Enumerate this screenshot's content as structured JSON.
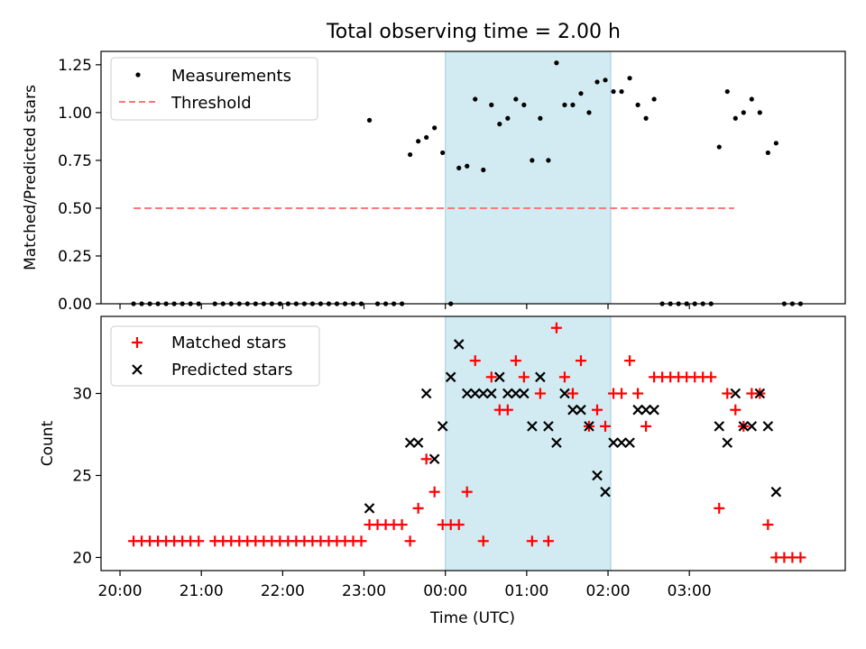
{
  "title": "Total observing time = 2.00 h",
  "chart_data": [
    {
      "type": "scatter",
      "ylabel": "Matched/Predicted stars",
      "ylim": [
        0,
        1.32
      ],
      "yticks": [
        "0.00",
        "0.25",
        "0.50",
        "0.75",
        "1.00",
        "1.25"
      ],
      "shaded_interval": [
        "00:00",
        "02:02"
      ],
      "legend": {
        "placement": "top-left",
        "entries": [
          "Measurements",
          "Threshold"
        ]
      },
      "threshold": {
        "name": "Threshold",
        "x": [
          "20:10",
          "03:33"
        ],
        "y": 0.5,
        "color": "#ff7777",
        "style": "dashed"
      },
      "series": [
        {
          "name": "Measurements",
          "color": "#000000",
          "marker": "dot",
          "points": [
            [
              "20:10",
              0
            ],
            [
              "20:16",
              0
            ],
            [
              "20:22",
              0
            ],
            [
              "20:28",
              0
            ],
            [
              "20:34",
              0
            ],
            [
              "20:40",
              0
            ],
            [
              "20:46",
              0
            ],
            [
              "20:52",
              0
            ],
            [
              "20:58",
              0
            ],
            [
              "21:10",
              0
            ],
            [
              "21:16",
              0
            ],
            [
              "21:22",
              0
            ],
            [
              "21:28",
              0
            ],
            [
              "21:34",
              0
            ],
            [
              "21:40",
              0
            ],
            [
              "21:46",
              0
            ],
            [
              "21:52",
              0
            ],
            [
              "21:58",
              0
            ],
            [
              "22:04",
              0
            ],
            [
              "22:10",
              0
            ],
            [
              "22:16",
              0
            ],
            [
              "22:22",
              0
            ],
            [
              "22:28",
              0
            ],
            [
              "22:34",
              0
            ],
            [
              "22:40",
              0
            ],
            [
              "22:46",
              0
            ],
            [
              "22:52",
              0
            ],
            [
              "22:58",
              0
            ],
            [
              "23:04",
              0.96
            ],
            [
              "23:10",
              0
            ],
            [
              "23:16",
              0
            ],
            [
              "23:22",
              0
            ],
            [
              "23:28",
              0
            ],
            [
              "23:34",
              0.78
            ],
            [
              "23:40",
              0.85
            ],
            [
              "23:46",
              0.87
            ],
            [
              "23:52",
              0.92
            ],
            [
              "23:58",
              0.79
            ],
            [
              "00:04",
              0
            ],
            [
              "00:10",
              0.71
            ],
            [
              "00:16",
              0.72
            ],
            [
              "00:22",
              1.07
            ],
            [
              "00:28",
              0.7
            ],
            [
              "00:34",
              1.04
            ],
            [
              "00:40",
              0.94
            ],
            [
              "00:46",
              0.97
            ],
            [
              "00:52",
              1.07
            ],
            [
              "00:58",
              1.04
            ],
            [
              "01:04",
              0.75
            ],
            [
              "01:10",
              0.97
            ],
            [
              "01:16",
              0.75
            ],
            [
              "01:22",
              1.26
            ],
            [
              "01:28",
              1.04
            ],
            [
              "01:34",
              1.04
            ],
            [
              "01:40",
              1.1
            ],
            [
              "01:46",
              1.0
            ],
            [
              "01:52",
              1.16
            ],
            [
              "01:58",
              1.17
            ],
            [
              "02:04",
              1.11
            ],
            [
              "02:10",
              1.11
            ],
            [
              "02:16",
              1.18
            ],
            [
              "02:22",
              1.04
            ],
            [
              "02:28",
              0.97
            ],
            [
              "02:34",
              1.07
            ],
            [
              "02:40",
              0
            ],
            [
              "02:46",
              0
            ],
            [
              "02:52",
              0
            ],
            [
              "02:58",
              0
            ],
            [
              "03:04",
              0
            ],
            [
              "03:10",
              0
            ],
            [
              "03:16",
              0
            ],
            [
              "03:22",
              0.82
            ],
            [
              "03:28",
              1.11
            ],
            [
              "03:34",
              0.97
            ],
            [
              "03:40",
              1.0
            ],
            [
              "03:46",
              1.07
            ],
            [
              "03:52",
              1.0
            ],
            [
              "03:58",
              0.79
            ],
            [
              "04:04",
              0.84
            ],
            [
              "04:10",
              0
            ],
            [
              "04:16",
              0
            ],
            [
              "04:22",
              0
            ]
          ]
        }
      ]
    },
    {
      "type": "scatter",
      "xlabel": "Time (UTC)",
      "ylabel": "Count",
      "ylim": [
        19.2,
        34.7
      ],
      "yticks": [
        "20",
        "25",
        "30"
      ],
      "xticks": [
        "20:00",
        "21:00",
        "22:00",
        "23:00",
        "00:00",
        "01:00",
        "02:00",
        "03:00"
      ],
      "shaded_interval": [
        "00:00",
        "02:02"
      ],
      "legend": {
        "placement": "top-left",
        "entries": [
          "Matched stars",
          "Predicted stars"
        ]
      },
      "series": [
        {
          "name": "Matched stars",
          "color": "#ff0000",
          "marker": "plus",
          "points": [
            [
              "20:10",
              21
            ],
            [
              "20:16",
              21
            ],
            [
              "20:22",
              21
            ],
            [
              "20:28",
              21
            ],
            [
              "20:34",
              21
            ],
            [
              "20:40",
              21
            ],
            [
              "20:46",
              21
            ],
            [
              "20:52",
              21
            ],
            [
              "20:58",
              21
            ],
            [
              "21:10",
              21
            ],
            [
              "21:16",
              21
            ],
            [
              "21:22",
              21
            ],
            [
              "21:28",
              21
            ],
            [
              "21:34",
              21
            ],
            [
              "21:40",
              21
            ],
            [
              "21:46",
              21
            ],
            [
              "21:52",
              21
            ],
            [
              "21:58",
              21
            ],
            [
              "22:04",
              21
            ],
            [
              "22:10",
              21
            ],
            [
              "22:16",
              21
            ],
            [
              "22:22",
              21
            ],
            [
              "22:28",
              21
            ],
            [
              "22:34",
              21
            ],
            [
              "22:40",
              21
            ],
            [
              "22:46",
              21
            ],
            [
              "22:52",
              21
            ],
            [
              "22:58",
              21
            ],
            [
              "23:04",
              22
            ],
            [
              "23:10",
              22
            ],
            [
              "23:16",
              22
            ],
            [
              "23:22",
              22
            ],
            [
              "23:28",
              22
            ],
            [
              "23:34",
              21
            ],
            [
              "23:40",
              23
            ],
            [
              "23:46",
              26
            ],
            [
              "23:52",
              24
            ],
            [
              "23:58",
              22
            ],
            [
              "00:04",
              22
            ],
            [
              "00:10",
              22
            ],
            [
              "00:16",
              24
            ],
            [
              "00:22",
              32
            ],
            [
              "00:28",
              21
            ],
            [
              "00:34",
              31
            ],
            [
              "00:40",
              29
            ],
            [
              "00:46",
              29
            ],
            [
              "00:52",
              32
            ],
            [
              "00:58",
              31
            ],
            [
              "01:04",
              21
            ],
            [
              "01:10",
              30
            ],
            [
              "01:16",
              21
            ],
            [
              "01:22",
              34
            ],
            [
              "01:28",
              31
            ],
            [
              "01:34",
              30
            ],
            [
              "01:40",
              32
            ],
            [
              "01:46",
              28
            ],
            [
              "01:52",
              29
            ],
            [
              "01:58",
              28
            ],
            [
              "02:04",
              30
            ],
            [
              "02:10",
              30
            ],
            [
              "02:16",
              32
            ],
            [
              "02:22",
              30
            ],
            [
              "02:28",
              28
            ],
            [
              "02:34",
              31
            ],
            [
              "02:40",
              31
            ],
            [
              "02:46",
              31
            ],
            [
              "02:52",
              31
            ],
            [
              "02:58",
              31
            ],
            [
              "03:04",
              31
            ],
            [
              "03:10",
              31
            ],
            [
              "03:16",
              31
            ],
            [
              "03:22",
              23
            ],
            [
              "03:28",
              30
            ],
            [
              "03:34",
              29
            ],
            [
              "03:40",
              28
            ],
            [
              "03:46",
              30
            ],
            [
              "03:52",
              30
            ],
            [
              "03:58",
              22
            ],
            [
              "04:04",
              20
            ],
            [
              "04:10",
              20
            ],
            [
              "04:16",
              20
            ],
            [
              "04:22",
              20
            ]
          ]
        },
        {
          "name": "Predicted stars",
          "color": "#000000",
          "marker": "x",
          "points": [
            [
              "23:04",
              23
            ],
            [
              "23:34",
              27
            ],
            [
              "23:40",
              27
            ],
            [
              "23:46",
              30
            ],
            [
              "23:52",
              26
            ],
            [
              "23:58",
              28
            ],
            [
              "00:04",
              31
            ],
            [
              "00:10",
              33
            ],
            [
              "00:16",
              30
            ],
            [
              "00:22",
              30
            ],
            [
              "00:28",
              30
            ],
            [
              "00:34",
              30
            ],
            [
              "00:40",
              31
            ],
            [
              "00:46",
              30
            ],
            [
              "00:52",
              30
            ],
            [
              "00:58",
              30
            ],
            [
              "01:04",
              28
            ],
            [
              "01:10",
              31
            ],
            [
              "01:16",
              28
            ],
            [
              "01:22",
              27
            ],
            [
              "01:28",
              30
            ],
            [
              "01:34",
              29
            ],
            [
              "01:40",
              29
            ],
            [
              "01:46",
              28
            ],
            [
              "01:52",
              25
            ],
            [
              "01:58",
              24
            ],
            [
              "02:04",
              27
            ],
            [
              "02:10",
              27
            ],
            [
              "02:16",
              27
            ],
            [
              "02:22",
              29
            ],
            [
              "02:28",
              29
            ],
            [
              "02:34",
              29
            ],
            [
              "03:22",
              28
            ],
            [
              "03:28",
              27
            ],
            [
              "03:34",
              30
            ],
            [
              "03:40",
              28
            ],
            [
              "03:46",
              28
            ],
            [
              "03:52",
              30
            ],
            [
              "03:58",
              28
            ],
            [
              "04:04",
              24
            ]
          ]
        }
      ]
    }
  ],
  "colors": {
    "shade": "#add8e6",
    "accent_red": "#ff0000",
    "threshold": "#ff7777"
  }
}
